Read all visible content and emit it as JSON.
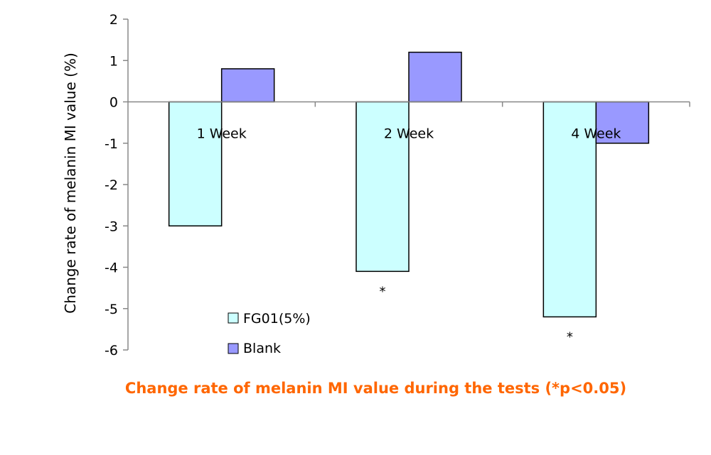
{
  "chart_data": {
    "type": "bar",
    "categories": [
      "1 Week",
      "2 Week",
      "4 Week"
    ],
    "series": [
      {
        "name": "FG01(5%)",
        "values": [
          -3.0,
          -4.1,
          -5.2
        ],
        "color": "#ccffff"
      },
      {
        "name": "Blank",
        "values": [
          0.8,
          1.2,
          -1.0
        ],
        "color": "#9999ff"
      }
    ],
    "ylabel": "Change rate of melanin MI value (%)",
    "ylim": [
      -6,
      2
    ],
    "yticks": [
      2,
      1,
      0,
      -1,
      -2,
      -3,
      -4,
      -5,
      -6
    ],
    "significance": [
      {
        "category": "2 Week",
        "series": "FG01(5%)",
        "mark": "*"
      },
      {
        "category": "4 Week",
        "series": "FG01(5%)",
        "mark": "*"
      }
    ],
    "caption": "Change rate of melanin MI value during the tests (*p<0.05)",
    "caption_color": "#ff6600",
    "legend_position": "bottom-left inside plot",
    "grid": false
  }
}
